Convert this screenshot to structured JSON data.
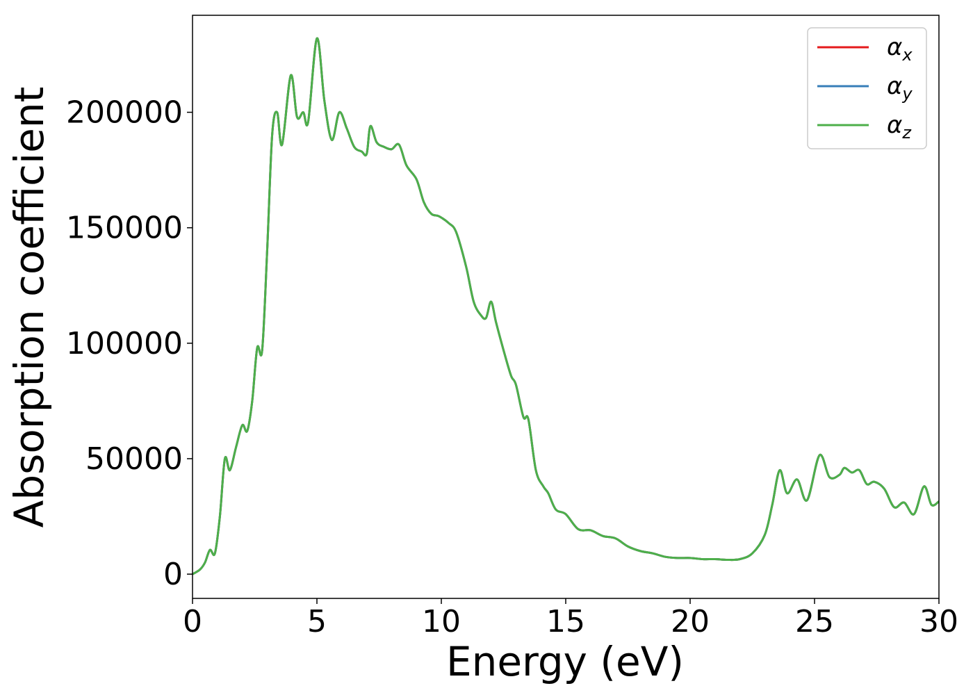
{
  "chart_data": {
    "type": "line",
    "xlabel": "Energy (eV)",
    "ylabel": "Absorption coefficient",
    "xlim": [
      0,
      30
    ],
    "ylim": [
      -10500,
      242000
    ],
    "xticks": [
      0,
      5,
      10,
      15,
      20,
      25,
      30
    ],
    "yticks": [
      0,
      50000,
      100000,
      150000,
      200000
    ],
    "grid": false,
    "legend_position": "top-right",
    "series": [
      {
        "name": "αx",
        "symbol": "α",
        "subscript": "x",
        "color": "#e41a1c",
        "x": [
          0,
          0.3,
          0.5,
          0.7,
          0.9,
          1.1,
          1.3,
          1.5,
          1.75,
          2.0,
          2.2,
          2.4,
          2.6,
          2.8,
          3.0,
          3.2,
          3.4,
          3.6,
          3.95,
          4.2,
          4.45,
          4.65,
          5.0,
          5.3,
          5.6,
          5.9,
          6.2,
          6.5,
          6.8,
          7.0,
          7.15,
          7.4,
          7.7,
          8.0,
          8.3,
          8.6,
          9.0,
          9.3,
          9.6,
          9.9,
          10.3,
          10.6,
          11.0,
          11.3,
          11.6,
          11.8,
          12.0,
          12.2,
          12.5,
          12.8,
          13.0,
          13.3,
          13.5,
          13.8,
          14.1,
          14.3,
          14.6,
          15.0,
          15.5,
          16.0,
          16.5,
          17.0,
          17.5,
          18.0,
          18.5,
          19.0,
          19.5,
          20.0,
          20.5,
          21.0,
          21.5,
          22.0,
          22.5,
          23.0,
          23.3,
          23.6,
          23.9,
          24.3,
          24.7,
          25.2,
          25.6,
          26.0,
          26.2,
          26.5,
          26.8,
          27.1,
          27.4,
          27.8,
          28.2,
          28.6,
          29.0,
          29.4,
          29.7,
          30.0
        ],
        "y": [
          0,
          2000,
          5000,
          10500,
          9000,
          25000,
          50000,
          45000,
          55000,
          64500,
          62000,
          75000,
          98000,
          97000,
          140000,
          190000,
          200000,
          186000,
          216000,
          198000,
          200000,
          196000,
          232000,
          205000,
          188000,
          200000,
          193000,
          185000,
          183000,
          182000,
          194000,
          187000,
          185000,
          184000,
          186000,
          177000,
          171000,
          161000,
          156000,
          155000,
          152000,
          148000,
          133000,
          118000,
          112000,
          111000,
          118000,
          109000,
          97000,
          86000,
          82000,
          68000,
          67000,
          45000,
          38000,
          35000,
          28000,
          26000,
          19500,
          19000,
          16500,
          15500,
          12000,
          10000,
          9000,
          7500,
          7000,
          7000,
          6500,
          6500,
          6200,
          6500,
          9000,
          17000,
          30000,
          45000,
          35000,
          41000,
          32000,
          51500,
          42000,
          43000,
          46000,
          44000,
          45000,
          39000,
          40000,
          37000,
          29000,
          31000,
          26000,
          38000,
          30000,
          31500
        ]
      },
      {
        "name": "αy",
        "symbol": "α",
        "subscript": "y",
        "color": "#377eb8",
        "x": [
          0,
          0.3,
          0.5,
          0.7,
          0.9,
          1.1,
          1.3,
          1.5,
          1.75,
          2.0,
          2.2,
          2.4,
          2.6,
          2.8,
          3.0,
          3.2,
          3.4,
          3.6,
          3.95,
          4.2,
          4.45,
          4.65,
          5.0,
          5.3,
          5.6,
          5.9,
          6.2,
          6.5,
          6.8,
          7.0,
          7.15,
          7.4,
          7.7,
          8.0,
          8.3,
          8.6,
          9.0,
          9.3,
          9.6,
          9.9,
          10.3,
          10.6,
          11.0,
          11.3,
          11.6,
          11.8,
          12.0,
          12.2,
          12.5,
          12.8,
          13.0,
          13.3,
          13.5,
          13.8,
          14.1,
          14.3,
          14.6,
          15.0,
          15.5,
          16.0,
          16.5,
          17.0,
          17.5,
          18.0,
          18.5,
          19.0,
          19.5,
          20.0,
          20.5,
          21.0,
          21.5,
          22.0,
          22.5,
          23.0,
          23.3,
          23.6,
          23.9,
          24.3,
          24.7,
          25.2,
          25.6,
          26.0,
          26.2,
          26.5,
          26.8,
          27.1,
          27.4,
          27.8,
          28.2,
          28.6,
          29.0,
          29.4,
          29.7,
          30.0
        ],
        "y": [
          0,
          2000,
          5000,
          10500,
          9000,
          25000,
          50000,
          45000,
          55000,
          64500,
          62000,
          75000,
          98000,
          97000,
          140000,
          190000,
          200000,
          186000,
          216000,
          198000,
          200000,
          196000,
          232000,
          205000,
          188000,
          200000,
          193000,
          185000,
          183000,
          182000,
          194000,
          187000,
          185000,
          184000,
          186000,
          177000,
          171000,
          161000,
          156000,
          155000,
          152000,
          148000,
          133000,
          118000,
          112000,
          111000,
          118000,
          109000,
          97000,
          86000,
          82000,
          68000,
          67000,
          45000,
          38000,
          35000,
          28000,
          26000,
          19500,
          19000,
          16500,
          15500,
          12000,
          10000,
          9000,
          7500,
          7000,
          7000,
          6500,
          6500,
          6200,
          6500,
          9000,
          17000,
          30000,
          45000,
          35000,
          41000,
          32000,
          51500,
          42000,
          43000,
          46000,
          44000,
          45000,
          39000,
          40000,
          37000,
          29000,
          31000,
          26000,
          38000,
          30000,
          31500
        ]
      },
      {
        "name": "αz",
        "symbol": "α",
        "subscript": "z",
        "color": "#4daf4a",
        "x": [
          0,
          0.3,
          0.5,
          0.7,
          0.9,
          1.1,
          1.3,
          1.5,
          1.75,
          2.0,
          2.2,
          2.4,
          2.6,
          2.8,
          3.0,
          3.2,
          3.4,
          3.6,
          3.95,
          4.2,
          4.45,
          4.65,
          5.0,
          5.3,
          5.6,
          5.9,
          6.2,
          6.5,
          6.8,
          7.0,
          7.15,
          7.4,
          7.7,
          8.0,
          8.3,
          8.6,
          9.0,
          9.3,
          9.6,
          9.9,
          10.3,
          10.6,
          11.0,
          11.3,
          11.6,
          11.8,
          12.0,
          12.2,
          12.5,
          12.8,
          13.0,
          13.3,
          13.5,
          13.8,
          14.1,
          14.3,
          14.6,
          15.0,
          15.5,
          16.0,
          16.5,
          17.0,
          17.5,
          18.0,
          18.5,
          19.0,
          19.5,
          20.0,
          20.5,
          21.0,
          21.5,
          22.0,
          22.5,
          23.0,
          23.3,
          23.6,
          23.9,
          24.3,
          24.7,
          25.2,
          25.6,
          26.0,
          26.2,
          26.5,
          26.8,
          27.1,
          27.4,
          27.8,
          28.2,
          28.6,
          29.0,
          29.4,
          29.7,
          30.0
        ],
        "y": [
          0,
          2000,
          5000,
          10500,
          9000,
          25000,
          50000,
          45000,
          55000,
          64500,
          62000,
          75000,
          98000,
          97000,
          140000,
          190000,
          200000,
          186000,
          216000,
          198000,
          200000,
          196000,
          232000,
          205000,
          188000,
          200000,
          193000,
          185000,
          183000,
          182000,
          194000,
          187000,
          185000,
          184000,
          186000,
          177000,
          171000,
          161000,
          156000,
          155000,
          152000,
          148000,
          133000,
          118000,
          112000,
          111000,
          118000,
          109000,
          97000,
          86000,
          82000,
          68000,
          67000,
          45000,
          38000,
          35000,
          28000,
          26000,
          19500,
          19000,
          16500,
          15500,
          12000,
          10000,
          9000,
          7500,
          7000,
          7000,
          6500,
          6500,
          6200,
          6500,
          9000,
          17000,
          30000,
          45000,
          35000,
          41000,
          32000,
          51500,
          42000,
          43000,
          46000,
          44000,
          45000,
          39000,
          40000,
          37000,
          29000,
          31000,
          26000,
          38000,
          30000,
          31500
        ]
      }
    ]
  }
}
